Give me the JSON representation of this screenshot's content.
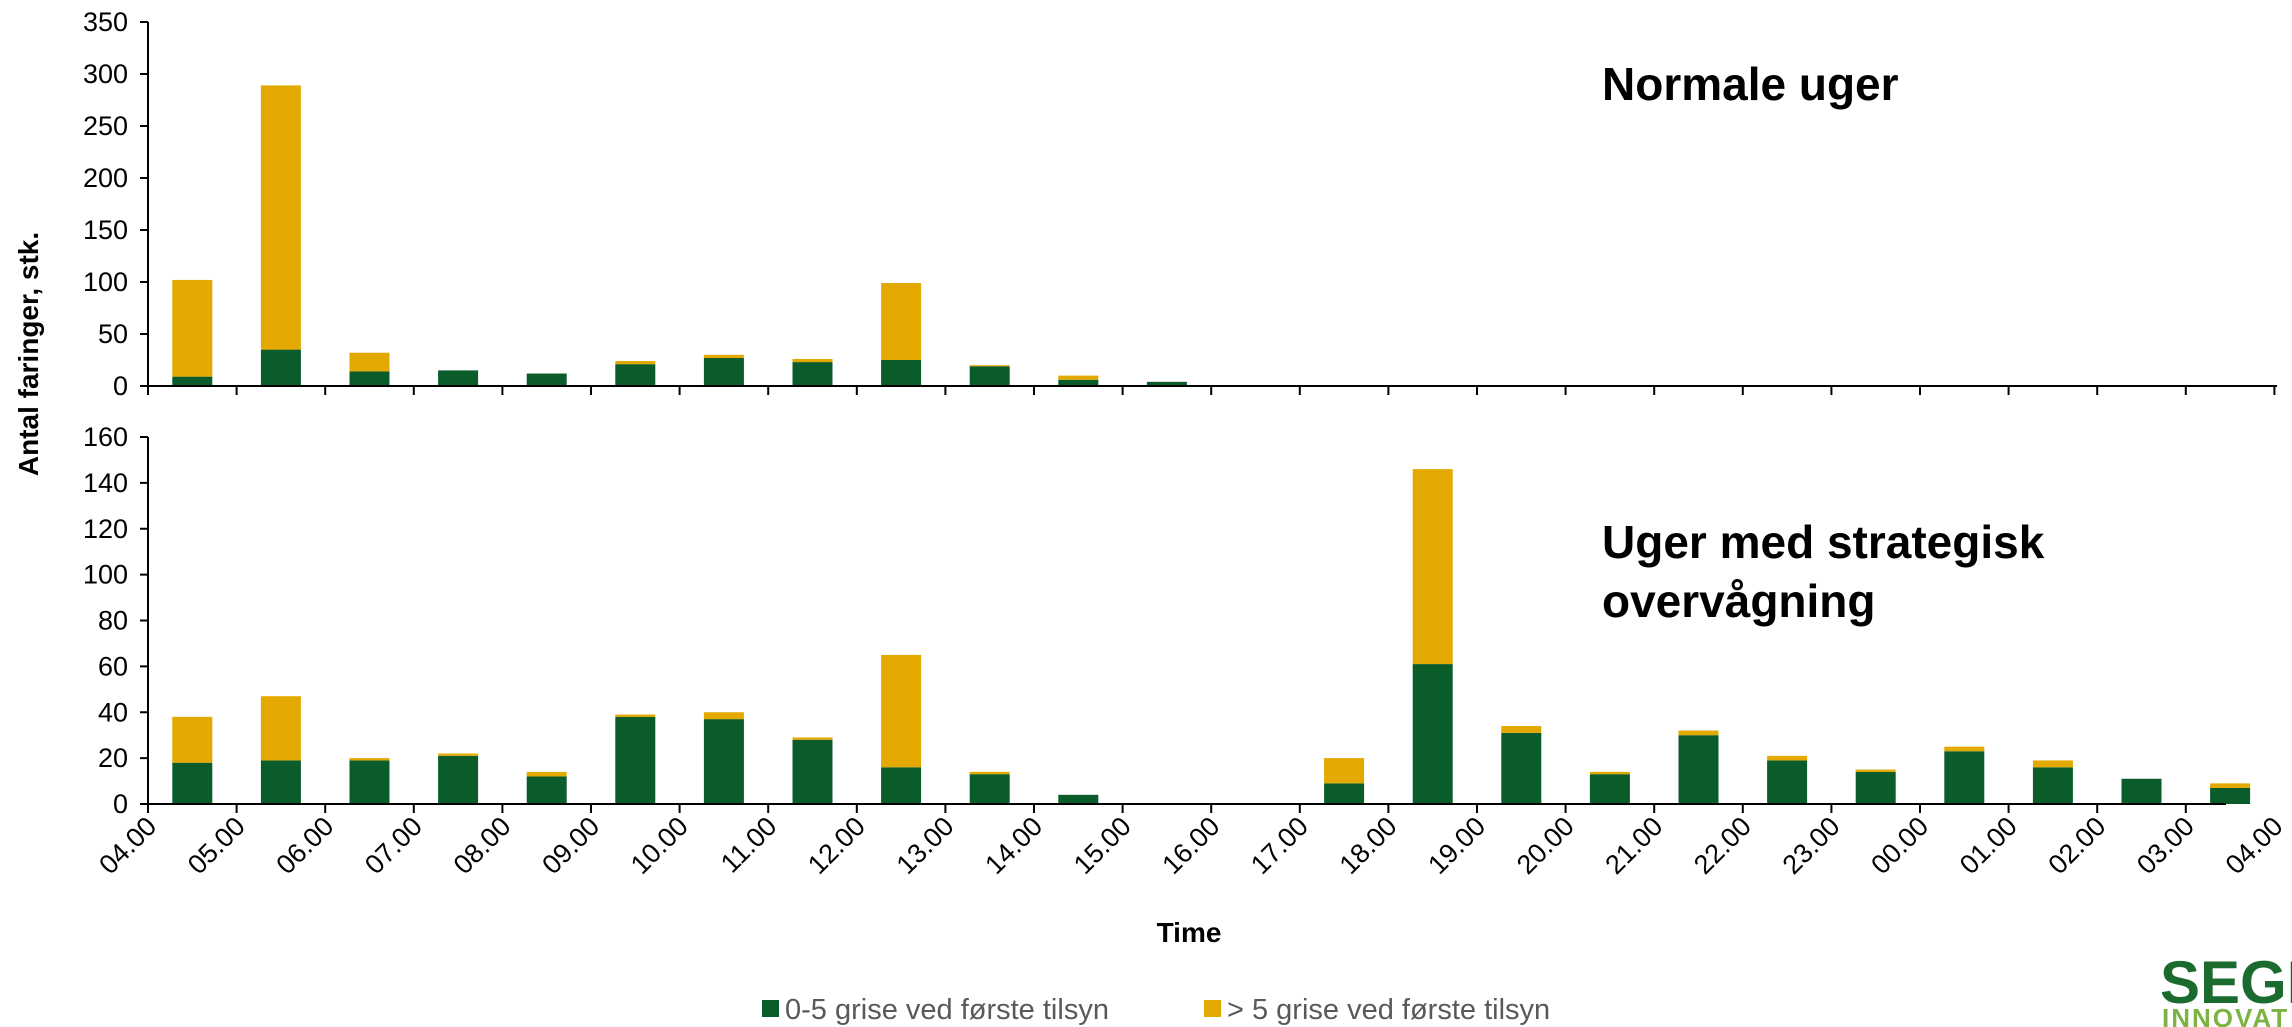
{
  "colors": {
    "series_low": "#0a5c2b",
    "series_high": "#e3a900",
    "axis": "#000000"
  },
  "logo": {
    "text_main": "SEGE",
    "text_sub": "INNOVAT"
  },
  "chart_data": [
    {
      "type": "bar",
      "stacked": true,
      "title": "Normale uger",
      "ylabel": "Antal faringer, stk.",
      "ylim": [
        0,
        350
      ],
      "yticks": [
        0,
        50,
        100,
        150,
        200,
        250,
        300,
        350
      ],
      "categories": [
        "04.00",
        "05.00",
        "06.00",
        "07.00",
        "08.00",
        "09.00",
        "10.00",
        "11.00",
        "12.00",
        "13.00",
        "14.00",
        "15.00",
        "16.00",
        "17.00",
        "18.00",
        "19.00",
        "20.00",
        "21.00",
        "22.00",
        "23.00",
        "00.00",
        "01.00",
        "02.00",
        "03.00"
      ],
      "series": [
        {
          "name": "0-5 grise ved første tilsyn",
          "values": [
            9,
            35,
            14,
            15,
            12,
            21,
            27,
            23,
            25,
            19,
            6,
            4,
            0,
            0,
            0,
            0,
            0,
            0,
            0,
            0,
            0,
            0,
            0,
            0
          ]
        },
        {
          "name": "> 5 grise ved første tilsyn",
          "values": [
            93,
            254,
            18,
            0,
            0,
            3,
            3,
            3,
            74,
            1,
            4,
            0,
            0,
            0,
            0,
            0,
            0,
            0,
            0,
            0,
            0,
            0,
            0,
            0
          ]
        }
      ]
    },
    {
      "type": "bar",
      "stacked": true,
      "title": "Uger med strategisk overvågning",
      "title_lines": [
        "Uger med strategisk",
        "overvågning"
      ],
      "xlabel": "Time",
      "ylim": [
        0,
        160
      ],
      "yticks": [
        0,
        20,
        40,
        60,
        80,
        100,
        120,
        140,
        160
      ],
      "xticks": [
        "04.00",
        "05.00",
        "06.00",
        "07.00",
        "08.00",
        "09.00",
        "10.00",
        "11.00",
        "12.00",
        "13.00",
        "14.00",
        "15.00",
        "16.00",
        "17.00",
        "18.00",
        "19.00",
        "20.00",
        "21.00",
        "22.00",
        "23.00",
        "00.00",
        "01.00",
        "02.00",
        "03.00",
        "04.00"
      ],
      "categories": [
        "04.00",
        "05.00",
        "06.00",
        "07.00",
        "08.00",
        "09.00",
        "10.00",
        "11.00",
        "12.00",
        "13.00",
        "14.00",
        "15.00",
        "16.00",
        "17.00",
        "18.00",
        "19.00",
        "20.00",
        "21.00",
        "22.00",
        "23.00",
        "00.00",
        "01.00",
        "02.00",
        "03.00"
      ],
      "series": [
        {
          "name": "0-5 grise ved første tilsyn",
          "values": [
            18,
            19,
            19,
            21,
            12,
            38,
            37,
            28,
            16,
            13,
            4,
            0,
            0,
            9,
            61,
            31,
            13,
            30,
            19,
            14,
            23,
            16,
            11,
            7
          ]
        },
        {
          "name": "> 5 grise ved første tilsyn",
          "values": [
            20,
            28,
            1,
            1,
            2,
            1,
            3,
            1,
            49,
            1,
            0,
            0,
            0,
            11,
            85,
            3,
            1,
            2,
            2,
            1,
            2,
            3,
            0,
            2
          ]
        }
      ]
    }
  ],
  "legend": [
    {
      "label": "0-5 grise ved første tilsyn",
      "color": "#0a5c2b"
    },
    {
      "label": "> 5 grise ved første tilsyn",
      "color": "#e3a900"
    }
  ]
}
